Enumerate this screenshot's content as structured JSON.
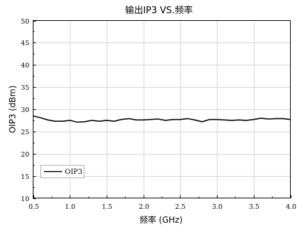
{
  "chart_data": {
    "type": "line",
    "title": "输出IP3 VS.频率",
    "xlabel": "频率 (GHz)",
    "ylabel": "OIP3 (dBm)",
    "xlim": [
      0.5,
      4.0
    ],
    "ylim": [
      10,
      50
    ],
    "x_ticks": [
      0.5,
      1.0,
      1.5,
      2.0,
      2.5,
      3.0,
      3.5,
      4.0
    ],
    "x_tick_labels": [
      "0.5",
      "1.0",
      "1.5",
      "2.0",
      "2.5",
      "3.0",
      "3.5",
      "4.0"
    ],
    "y_ticks": [
      10,
      15,
      20,
      25,
      30,
      35,
      40,
      45,
      50
    ],
    "y_tick_labels": [
      "10",
      "15",
      "20",
      "25",
      "30",
      "35",
      "40",
      "45",
      "50"
    ],
    "grid": true,
    "legend_position": "bottom-left",
    "series": [
      {
        "name": "OIP3",
        "color": "#000000",
        "x": [
          0.5,
          0.6,
          0.7,
          0.8,
          0.9,
          1.0,
          1.1,
          1.2,
          1.3,
          1.4,
          1.5,
          1.6,
          1.7,
          1.8,
          1.9,
          2.0,
          2.1,
          2.2,
          2.3,
          2.4,
          2.5,
          2.6,
          2.7,
          2.8,
          2.9,
          3.0,
          3.1,
          3.2,
          3.3,
          3.4,
          3.5,
          3.6,
          3.7,
          3.8,
          3.9,
          4.0
        ],
        "y": [
          28.5,
          28.1,
          27.6,
          27.3,
          27.3,
          27.5,
          27.1,
          27.2,
          27.5,
          27.3,
          27.5,
          27.3,
          27.7,
          27.9,
          27.6,
          27.6,
          27.7,
          27.8,
          27.5,
          27.7,
          27.7,
          27.9,
          27.6,
          27.2,
          27.7,
          27.7,
          27.6,
          27.5,
          27.6,
          27.5,
          27.7,
          28.0,
          27.8,
          27.9,
          27.9,
          27.7
        ]
      }
    ]
  }
}
